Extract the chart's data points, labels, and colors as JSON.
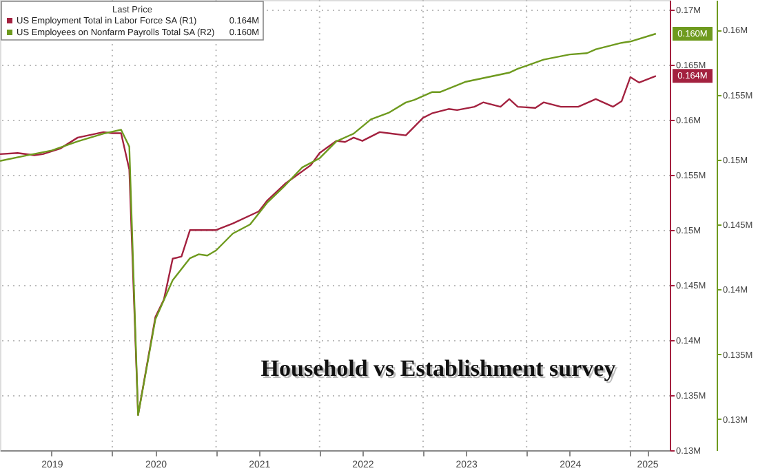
{
  "chart_data": {
    "type": "line",
    "legend_title": "Last Price",
    "legend": "top left",
    "grid": true,
    "line_style": "solid",
    "marker": "none",
    "series": [
      {
        "name": "US Employment Total in Labor Force SA (R1)",
        "color": "#a3213f",
        "axis": "y",
        "x": [
          "2018-12",
          "2019-02",
          "2019-04",
          "2019-05",
          "2019-07",
          "2019-09",
          "2019-12",
          "2020-01",
          "2020-02",
          "2020-03",
          "2020-04",
          "2020-06",
          "2020-07",
          "2020-08",
          "2020-09",
          "2020-10",
          "2021-01",
          "2021-03",
          "2021-06",
          "2021-07",
          "2021-09",
          "2021-12",
          "2022-01",
          "2022-03",
          "2022-04",
          "2022-05",
          "2022-06",
          "2022-08",
          "2022-09",
          "2022-11",
          "2023-01",
          "2023-02",
          "2023-04",
          "2023-05",
          "2023-07",
          "2023-08",
          "2023-10",
          "2023-11",
          "2023-12",
          "2024-02",
          "2024-03",
          "2024-05",
          "2024-07",
          "2024-09",
          "2024-11",
          "2024-12",
          "2025-01",
          "2025-02",
          "2025-04"
        ],
        "values": [
          0.1569,
          0.157,
          0.1568,
          0.1569,
          0.1574,
          0.1584,
          0.1589,
          0.1588,
          0.1588,
          0.1555,
          0.1332,
          0.1421,
          0.1437,
          0.1474,
          0.1476,
          0.15,
          0.15,
          0.1506,
          0.1517,
          0.1527,
          0.1542,
          0.1559,
          0.157,
          0.1581,
          0.158,
          0.1584,
          0.1581,
          0.1589,
          0.1588,
          0.1586,
          0.1602,
          0.1606,
          0.161,
          0.1609,
          0.1612,
          0.1616,
          0.1612,
          0.1619,
          0.1612,
          0.1611,
          0.1616,
          0.1612,
          0.1612,
          0.1619,
          0.1612,
          0.1617,
          0.1639,
          0.1634,
          0.164
        ]
      },
      {
        "name": "US Employees on Nonfarm Payrolls Total SA (R2)",
        "color": "#6e9a1e",
        "axis": "y2",
        "x": [
          "2018-12",
          "2019-03",
          "2019-06",
          "2019-09",
          "2019-12",
          "2020-02",
          "2020-03",
          "2020-04",
          "2020-06",
          "2020-08",
          "2020-10",
          "2020-11",
          "2020-12",
          "2021-01",
          "2021-03",
          "2021-05",
          "2021-07",
          "2021-09",
          "2021-11",
          "2022-01",
          "2022-03",
          "2022-05",
          "2022-07",
          "2022-09",
          "2022-11",
          "2022-12",
          "2023-02",
          "2023-03",
          "2023-06",
          "2023-11",
          "2023-12",
          "2024-03",
          "2024-06",
          "2024-08",
          "2024-09",
          "2024-12",
          "2025-01",
          "2025-04"
        ],
        "values": [
          0.1499,
          0.1503,
          0.1507,
          0.1514,
          0.152,
          0.1523,
          0.151,
          0.1303,
          0.1377,
          0.1407,
          0.1424,
          0.1427,
          0.1426,
          0.143,
          0.1443,
          0.145,
          0.1467,
          0.148,
          0.1494,
          0.1501,
          0.1514,
          0.152,
          0.1531,
          0.1536,
          0.1544,
          0.1546,
          0.1552,
          0.1552,
          0.156,
          0.1567,
          0.157,
          0.1577,
          0.1581,
          0.1582,
          0.1585,
          0.159,
          0.1591,
          0.1597
        ]
      }
    ],
    "xlim": [
      "2018-12-01",
      "2025-05-20"
    ],
    "xticks": [
      {
        "value": "2019-06-01",
        "label": "2019"
      },
      {
        "value": "2020-06-01",
        "label": "2020"
      },
      {
        "value": "2021-06-01",
        "label": "2021"
      },
      {
        "value": "2022-06-01",
        "label": "2022"
      },
      {
        "value": "2023-06-01",
        "label": "2023"
      },
      {
        "value": "2024-06-01",
        "label": "2024"
      },
      {
        "value": "2025-03-01",
        "label": "2025"
      },
      {
        "value": "2020-01-01",
        "label": null
      },
      {
        "value": "2021-01-01",
        "label": null
      },
      {
        "value": "2022-01-01",
        "label": null
      },
      {
        "value": "2023-01-01",
        "label": null
      },
      {
        "value": "2024-01-01",
        "label": null
      },
      {
        "value": "2025-01-01",
        "label": null
      }
    ],
    "ylim": [
      0.13,
      0.1709
    ],
    "yticks": [
      {
        "value": 0.13,
        "label": "0.13M"
      },
      {
        "value": 0.135,
        "label": "0.135M"
      },
      {
        "value": 0.14,
        "label": "0.14M"
      },
      {
        "value": 0.145,
        "label": "0.145M"
      },
      {
        "value": 0.15,
        "label": "0.15M"
      },
      {
        "value": 0.155,
        "label": "0.155M"
      },
      {
        "value": 0.16,
        "label": "0.16M"
      },
      {
        "value": 0.165,
        "label": "0.165M"
      },
      {
        "value": 0.17,
        "label": "0.17M"
      }
    ],
    "y2lim": [
      0.1276,
      0.1623
    ],
    "y2ticks": [
      {
        "value": 0.13,
        "label": "0.13M"
      },
      {
        "value": 0.135,
        "label": "0.135M"
      },
      {
        "value": 0.14,
        "label": "0.14M"
      },
      {
        "value": 0.145,
        "label": "0.145M"
      },
      {
        "value": 0.15,
        "label": "0.15M"
      },
      {
        "value": 0.155,
        "label": "0.155M"
      },
      {
        "value": 0.16,
        "label": "0.16M"
      }
    ],
    "annotations": [
      "0.164M",
      "0.160M",
      "Household vs Establishment survey"
    ]
  }
}
